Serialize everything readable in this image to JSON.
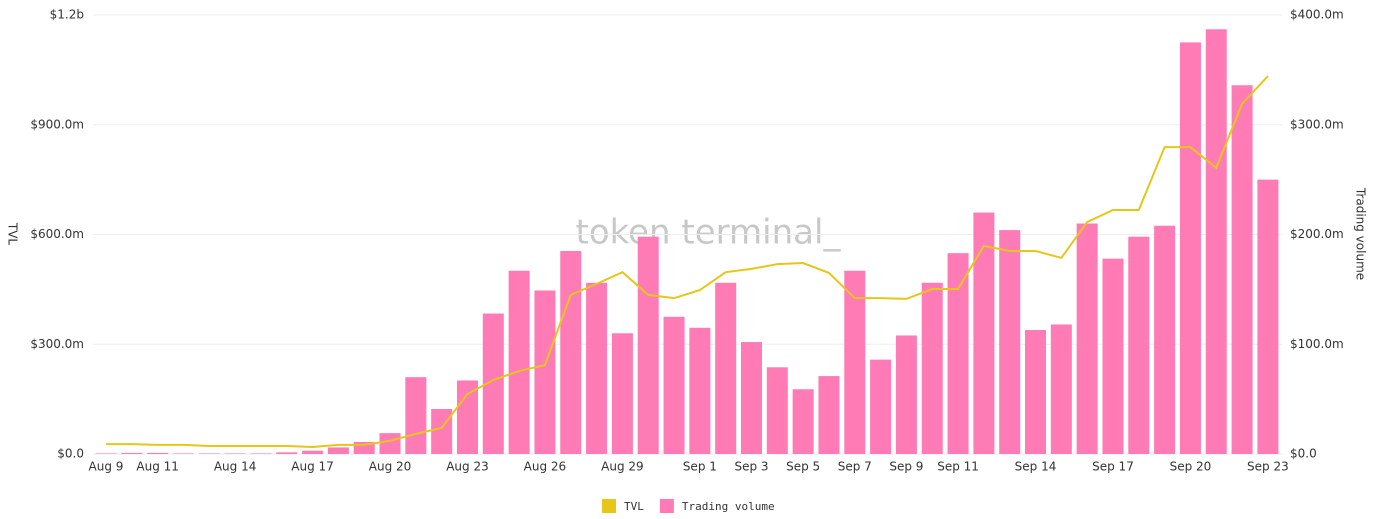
{
  "chart_data": {
    "type": "bar-line",
    "watermark": "token terminal_",
    "y_label": "TVL",
    "y2_label": "Trading volume",
    "categories": [
      "Aug 9",
      null,
      "Aug 11",
      null,
      null,
      "Aug 14",
      null,
      null,
      "Aug 17",
      null,
      null,
      "Aug 20",
      null,
      null,
      "Aug 23",
      null,
      null,
      "Aug 26",
      null,
      null,
      "Aug 29",
      null,
      null,
      "Sep 1",
      null,
      "Sep 3",
      null,
      "Sep 5",
      null,
      "Sep 7",
      null,
      "Sep 9",
      null,
      "Sep 11",
      null,
      null,
      "Sep 14",
      null,
      null,
      "Sep 17",
      null,
      null,
      "Sep 20",
      null,
      null,
      "Sep 23"
    ],
    "series": [
      {
        "name": "TVL",
        "type": "line",
        "color": "#e6c619",
        "axis": "y",
        "values": [
          27,
          27,
          25,
          25,
          22,
          22,
          22,
          22,
          19,
          25,
          25,
          36,
          55,
          71,
          164,
          202,
          227,
          243,
          435,
          465,
          497,
          435,
          426,
          448,
          497,
          506,
          519,
          522,
          495,
          426,
          426,
          424,
          451,
          451,
          569,
          555,
          555,
          536,
          634,
          667,
          667,
          839,
          839,
          782,
          957,
          1033
        ]
      },
      {
        "name": "Trading volume",
        "type": "bar",
        "color": "#ff7bb5",
        "axis": "y2",
        "values": [
          0.5,
          1,
          1,
          0.5,
          0.5,
          0.5,
          0.5,
          1.5,
          3,
          6,
          11,
          19,
          70,
          41,
          67,
          128,
          167,
          149,
          185,
          156,
          110,
          198,
          125,
          115,
          156,
          102,
          79,
          59,
          71,
          167,
          86,
          108,
          156,
          183,
          220,
          204,
          113,
          118,
          210,
          178,
          198,
          208,
          375,
          387,
          336,
          250
        ]
      }
    ],
    "ylim": [
      0,
      1200
    ],
    "yticks": [
      {
        "value": 0,
        "label": "$0.0"
      },
      {
        "value": 300,
        "label": "$300.0m"
      },
      {
        "value": 600,
        "label": "$600.0m"
      },
      {
        "value": 900,
        "label": "$900.0m"
      },
      {
        "value": 1200,
        "label": "$1.2b"
      }
    ],
    "y2lim": [
      0,
      400
    ],
    "y2ticks": [
      {
        "value": 0,
        "label": "$0.0"
      },
      {
        "value": 100,
        "label": "$100.0m"
      },
      {
        "value": 200,
        "label": "$200.0m"
      },
      {
        "value": 300,
        "label": "$300.0m"
      },
      {
        "value": 400,
        "label": "$400.0m"
      }
    ],
    "grid": true,
    "legend": "bottom"
  }
}
